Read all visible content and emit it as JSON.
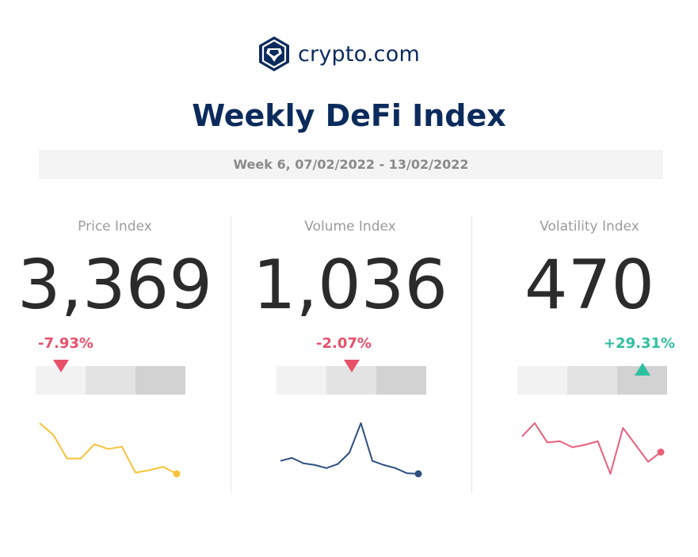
{
  "brand": {
    "name": "crypto.com",
    "color": "#0b2b5c"
  },
  "title": "Weekly DeFi Index",
  "period": "Week 6, 07/02/2022 - 13/02/2022",
  "colors": {
    "negative": "#e8506a",
    "positive": "#2ebfa1"
  },
  "chart_data": [
    {
      "type": "line",
      "title": "Price Index",
      "value": "3,369",
      "change": "-7.93%",
      "direction": "down",
      "gauge_level": 0,
      "line_color": "#f7c23a",
      "values": [
        3.7,
        3.6,
        3.4,
        3.4,
        3.52,
        3.48,
        3.5,
        3.28,
        3.3,
        3.33,
        3.27
      ]
    },
    {
      "type": "line",
      "title": "Volume Index",
      "value": "1,036",
      "change": "-2.07%",
      "direction": "down",
      "gauge_level": 1,
      "line_color": "#2d4f80",
      "values": [
        0.55,
        0.7,
        0.43,
        0.35,
        0.2,
        0.4,
        0.95,
        2.4,
        0.55,
        0.35,
        0.2,
        -0.05,
        -0.08
      ]
    },
    {
      "type": "line",
      "title": "Volatility Index",
      "value": "470",
      "change": "+29.31%",
      "direction": "up",
      "gauge_level": 2,
      "line_color": "#e8607a",
      "values": [
        0.55,
        1.1,
        0.3,
        0.35,
        0.1,
        0.2,
        0.35,
        -1.0,
        0.9,
        0.2,
        -0.5,
        -0.1
      ]
    }
  ]
}
